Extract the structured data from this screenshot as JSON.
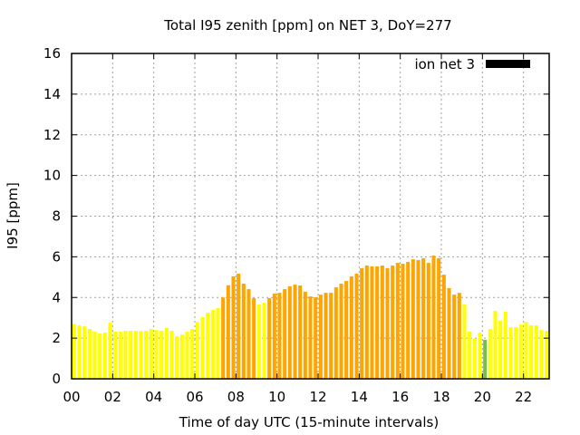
{
  "chart_data": {
    "type": "bar",
    "title": "Total I95 zenith [ppm] on NET 3, DoY=277",
    "xlabel": "Time of day UTC (15-minute intervals)",
    "ylabel": "I95 [ppm]",
    "xlim": [
      0,
      23.25
    ],
    "ylim": [
      0,
      16
    ],
    "yticks": [
      "0",
      "2",
      "4",
      "6",
      "8",
      "10",
      "12",
      "14",
      "16"
    ],
    "xticks": [
      "00",
      "02",
      "04",
      "06",
      "08",
      "10",
      "12",
      "14",
      "16",
      "18",
      "20",
      "22"
    ],
    "grid": true,
    "legend": {
      "label": "ion net 3",
      "placement": "top-right",
      "color": "#000000"
    },
    "bar_interval_hours": 0.25,
    "color_levels": [
      {
        "below": 1.95,
        "color": "#77c043"
      },
      {
        "below": 3.9,
        "color": "#ffff00"
      },
      {
        "below": 100,
        "color": "#ffa500"
      }
    ],
    "values": [
      2.7,
      2.63,
      2.58,
      2.45,
      2.32,
      2.23,
      2.27,
      2.76,
      2.32,
      2.32,
      2.36,
      2.36,
      2.36,
      2.36,
      2.36,
      2.45,
      2.4,
      2.36,
      2.5,
      2.36,
      2.1,
      2.18,
      2.32,
      2.45,
      2.8,
      3.03,
      3.25,
      3.39,
      3.48,
      4.0,
      4.6,
      5.04,
      5.17,
      4.68,
      4.41,
      3.97,
      3.65,
      3.74,
      3.97,
      4.19,
      4.23,
      4.41,
      4.55,
      4.63,
      4.59,
      4.28,
      4.05,
      4.01,
      4.14,
      4.23,
      4.23,
      4.5,
      4.68,
      4.81,
      5.04,
      5.17,
      5.44,
      5.57,
      5.53,
      5.53,
      5.57,
      5.44,
      5.57,
      5.7,
      5.66,
      5.75,
      5.88,
      5.84,
      5.93,
      5.7,
      6.06,
      5.93,
      5.12,
      4.46,
      4.14,
      4.23,
      3.65,
      2.32,
      1.98,
      2.27,
      1.92,
      2.45,
      3.34,
      2.85,
      3.3,
      2.54,
      2.54,
      2.67,
      2.8,
      2.63,
      2.63,
      2.4,
      2.36
    ]
  }
}
